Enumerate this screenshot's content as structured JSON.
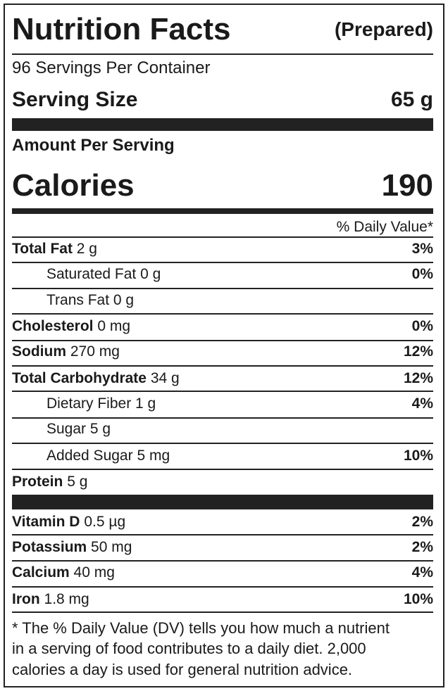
{
  "header": {
    "title": "Nutrition Facts",
    "subtitle": "(Prepared)"
  },
  "servings": "96 Servings Per Container",
  "serving_size": {
    "label": "Serving Size",
    "value": "65 g"
  },
  "amount_per_serving": "Amount Per Serving",
  "calories": {
    "label": "Calories",
    "value": "190"
  },
  "daily_value_header": "% Daily Value*",
  "nutrients": [
    {
      "name": "Total Fat",
      "amount": "2 g",
      "dv": "3%"
    },
    {
      "name": "Saturated Fat",
      "amount": "0 g",
      "dv": "0%"
    },
    {
      "name": "Trans Fat",
      "amount": "0 g"
    },
    {
      "name": "Cholesterol",
      "amount": "0 mg",
      "dv": "0%"
    },
    {
      "name": "Sodium",
      "amount": "270 mg",
      "dv": "12%"
    },
    {
      "name": "Total Carbohydrate",
      "amount": "34 g",
      "dv": "12%"
    },
    {
      "name": "Dietary Fiber",
      "amount": "1 g",
      "dv": "4%"
    },
    {
      "name": "Sugar",
      "amount": "5 g"
    },
    {
      "name": "Added Sugar",
      "amount": "5 mg",
      "dv": "10%"
    },
    {
      "name": "Protein",
      "amount": "5 g"
    }
  ],
  "vitamins": [
    {
      "name": "Vitamin D",
      "amount": "0.5 µg",
      "dv": "2%"
    },
    {
      "name": "Potassium",
      "amount": "50 mg",
      "dv": "2%"
    },
    {
      "name": "Calcium",
      "amount": "40 mg",
      "dv": "4%"
    },
    {
      "name": "Iron",
      "amount": "1.8 mg",
      "dv": "10%"
    }
  ],
  "footnote": [
    "* The % Daily Value (DV) tells you how much a nutrient",
    "in a serving of food contributes to a daily diet. 2,000",
    "calories a day is used for general nutrition advice."
  ]
}
